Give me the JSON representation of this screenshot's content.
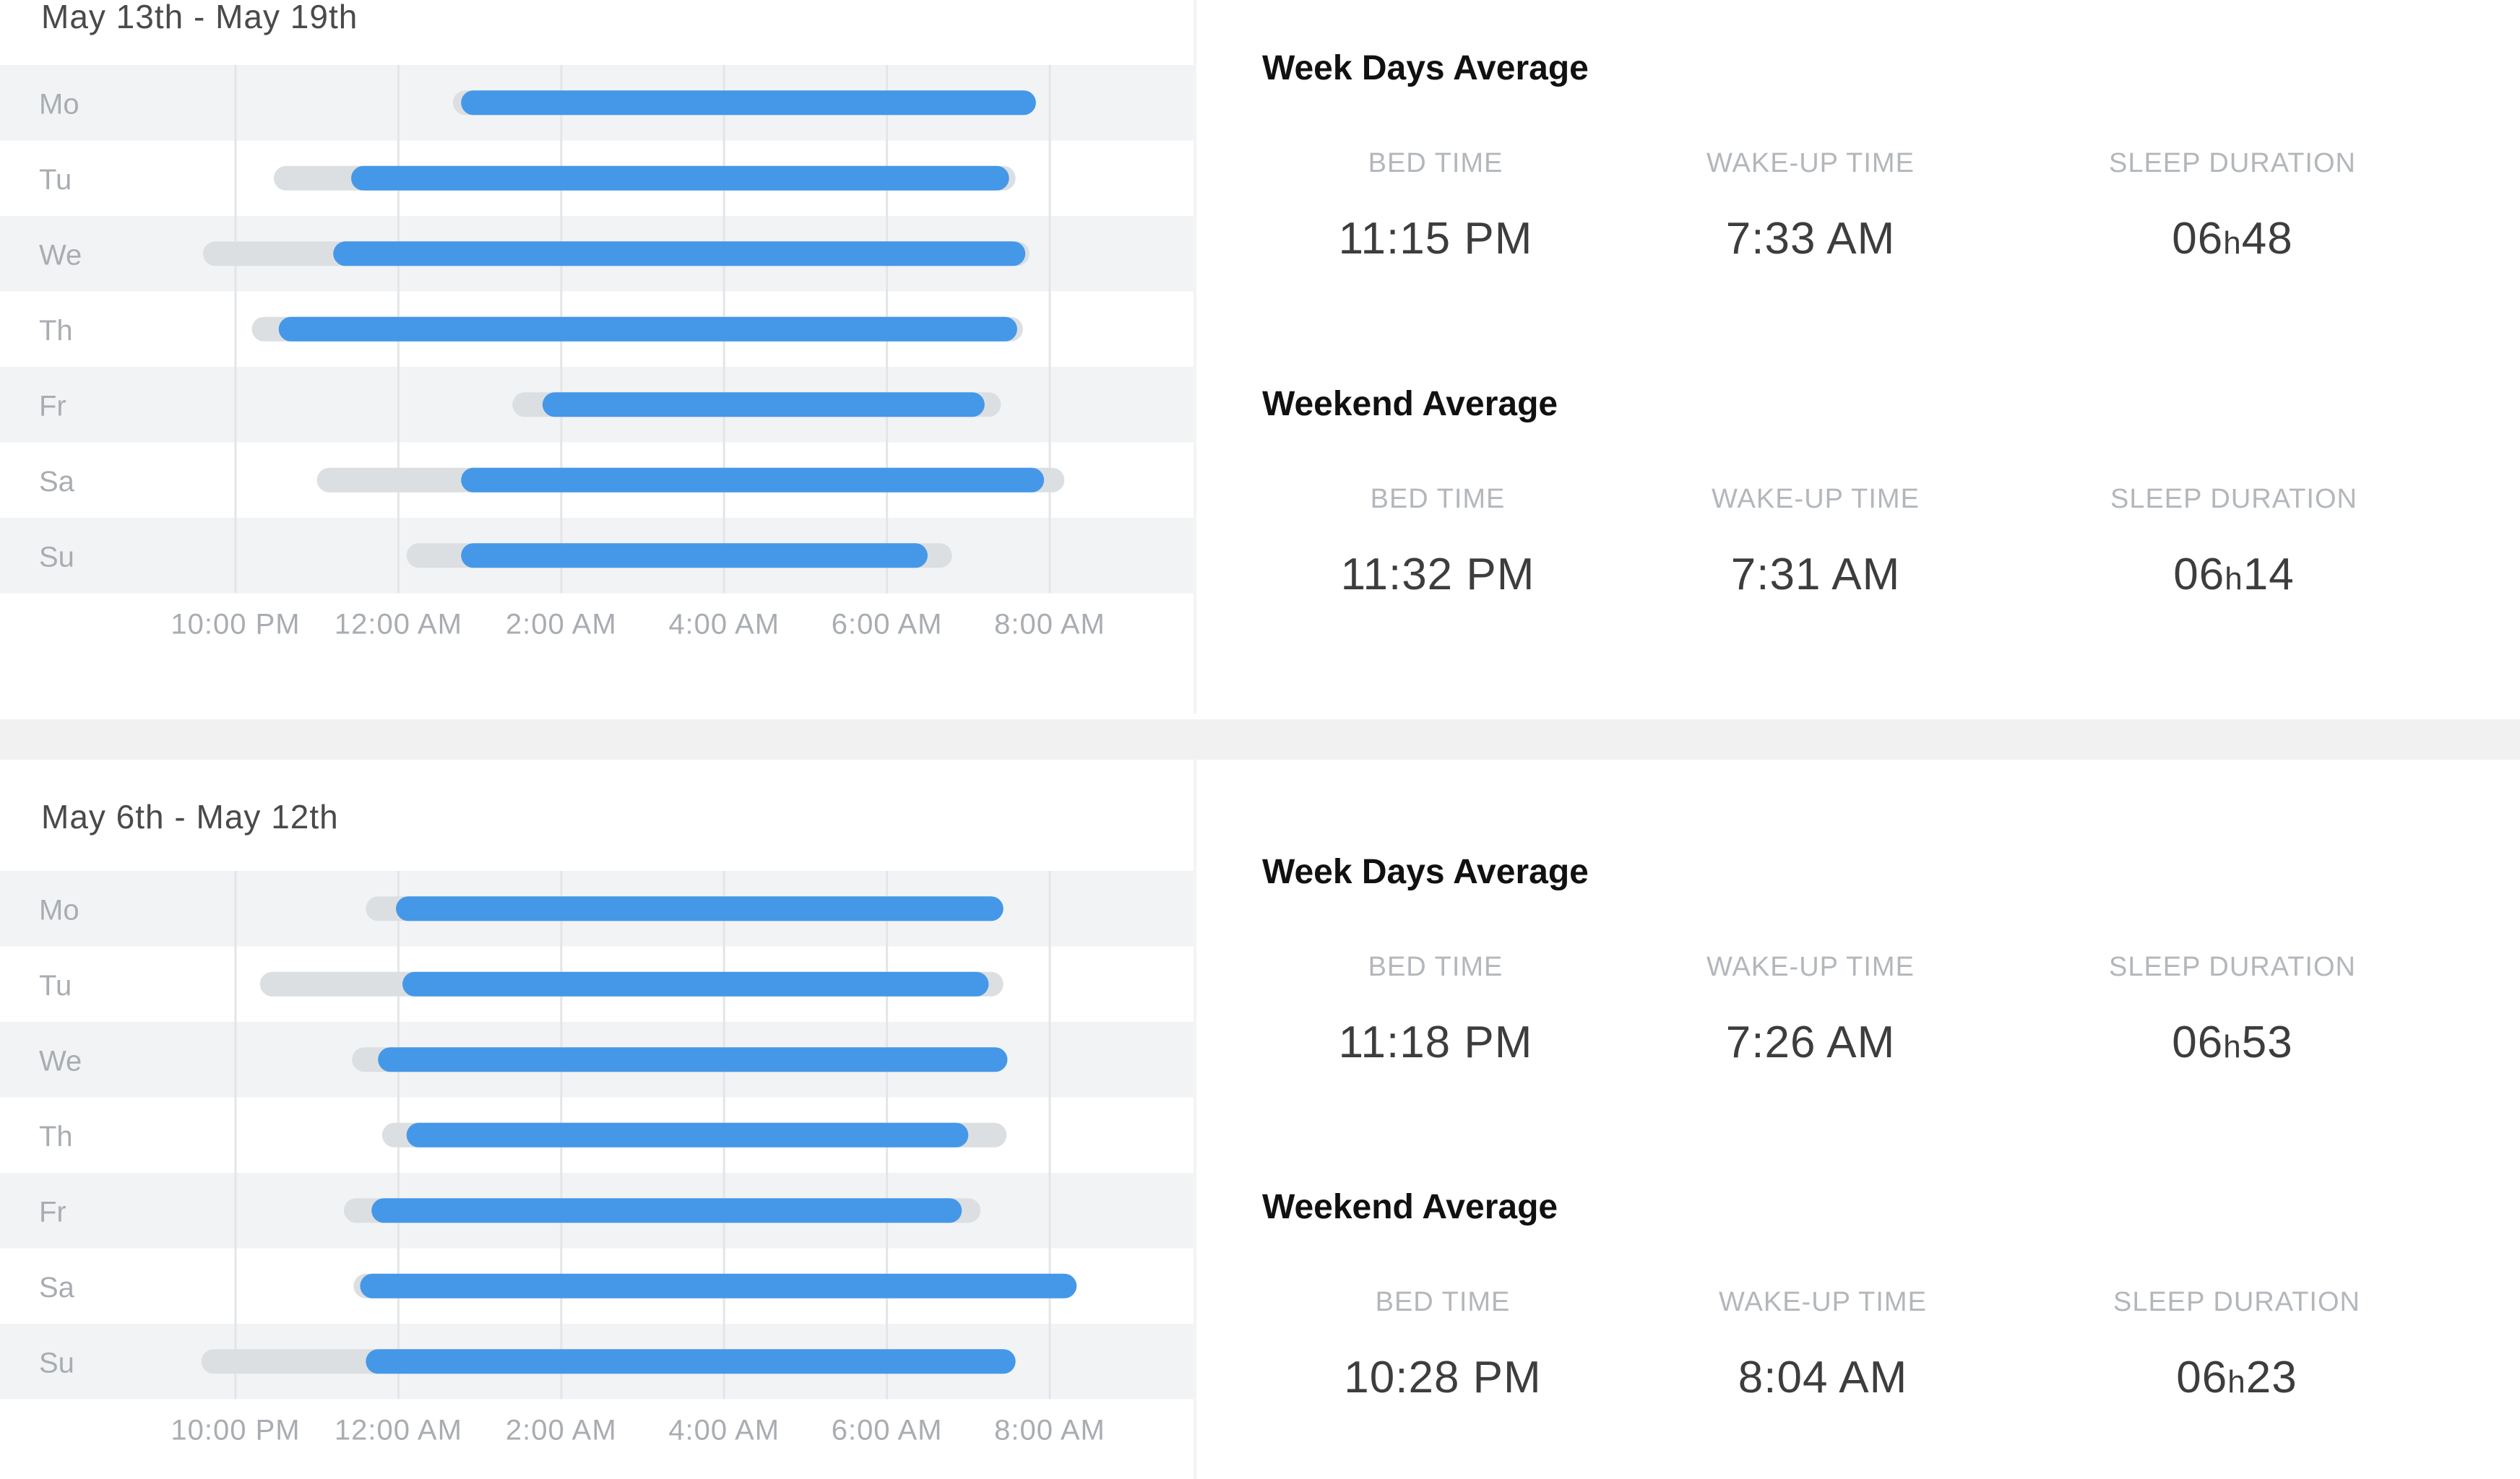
{
  "weeks": [
    {
      "range": "May 13th - May 19th",
      "chart_data": {
        "type": "bar",
        "subtype": "range",
        "categories": [
          "Mo",
          "Tu",
          "We",
          "Th",
          "Fr",
          "Sa",
          "Su"
        ],
        "x_ticks": [
          "10:00 PM",
          "12:00 AM",
          "2:00 AM",
          "4:00 AM",
          "6:00 AM",
          "8:00 AM"
        ],
        "x_unit": "hours since 10:00 PM",
        "xlim": [
          -2.0,
          10.7
        ],
        "grid": true,
        "colors": {
          "asleep": "#4598e8",
          "in_bed": "#dcdfe1"
        },
        "series": [
          {
            "name": "in bed",
            "values": [
              [
                2.67,
                9.83
              ],
              [
                0.47,
                9.58
              ],
              [
                -0.4,
                9.75
              ],
              [
                0.2,
                9.67
              ],
              [
                3.4,
                9.4
              ],
              [
                1.0,
                10.18
              ],
              [
                2.1,
                8.8
              ]
            ]
          },
          {
            "name": "asleep",
            "values": [
              [
                2.77,
                9.83
              ],
              [
                1.42,
                9.5
              ],
              [
                1.2,
                9.7
              ],
              [
                0.53,
                9.6
              ],
              [
                3.77,
                9.2
              ],
              [
                2.77,
                9.93
              ],
              [
                2.77,
                8.5
              ]
            ]
          }
        ]
      },
      "weekday": {
        "title": "Week Days Average",
        "bed_label": "BED TIME",
        "bed": "11:15 PM",
        "wake_label": "WAKE-UP TIME",
        "wake": "7:33 AM",
        "dur_label": "SLEEP DURATION",
        "dur_h": "06",
        "dur_sep": "h",
        "dur_m": "48"
      },
      "weekend": {
        "title": "Weekend Average",
        "bed_label": "BED TIME",
        "bed": "11:32 PM",
        "wake_label": "WAKE-UP TIME",
        "wake": "7:31 AM",
        "dur_label": "SLEEP DURATION",
        "dur_h": "06",
        "dur_sep": "h",
        "dur_m": "14"
      }
    },
    {
      "range": "May 6th - May 12th",
      "chart_data": {
        "type": "bar",
        "subtype": "range",
        "categories": [
          "Mo",
          "Tu",
          "We",
          "Th",
          "Fr",
          "Sa",
          "Su"
        ],
        "x_ticks": [
          "10:00 PM",
          "12:00 AM",
          "2:00 AM",
          "4:00 AM",
          "6:00 AM",
          "8:00 AM"
        ],
        "x_unit": "hours since 10:00 PM",
        "xlim": [
          -2.0,
          10.7
        ],
        "grid": true,
        "colors": {
          "asleep": "#4598e8",
          "in_bed": "#dcdfe1"
        },
        "series": [
          {
            "name": "in bed",
            "values": [
              [
                1.6,
                9.43
              ],
              [
                0.3,
                9.43
              ],
              [
                1.43,
                9.48
              ],
              [
                1.8,
                9.47
              ],
              [
                1.33,
                9.15
              ],
              [
                1.45,
                10.33
              ],
              [
                -0.42,
                9.58
              ]
            ]
          },
          {
            "name": "asleep",
            "values": [
              [
                1.97,
                9.43
              ],
              [
                2.05,
                9.25
              ],
              [
                1.75,
                9.48
              ],
              [
                2.1,
                9.0
              ],
              [
                1.67,
                8.92
              ],
              [
                1.53,
                10.33
              ],
              [
                1.6,
                9.58
              ]
            ]
          }
        ]
      },
      "weekday": {
        "title": "Week Days Average",
        "bed_label": "BED TIME",
        "bed": "11:18 PM",
        "wake_label": "WAKE-UP TIME",
        "wake": "7:26 AM",
        "dur_label": "SLEEP DURATION",
        "dur_h": "06",
        "dur_sep": "h",
        "dur_m": "53"
      },
      "weekend": {
        "title": "Weekend Average",
        "bed_label": "BED TIME",
        "bed": "10:28 PM",
        "wake_label": "WAKE-UP TIME",
        "wake": "8:04 AM",
        "dur_label": "SLEEP DURATION",
        "dur_h": "06",
        "dur_sep": "h",
        "dur_m": "23"
      }
    }
  ]
}
